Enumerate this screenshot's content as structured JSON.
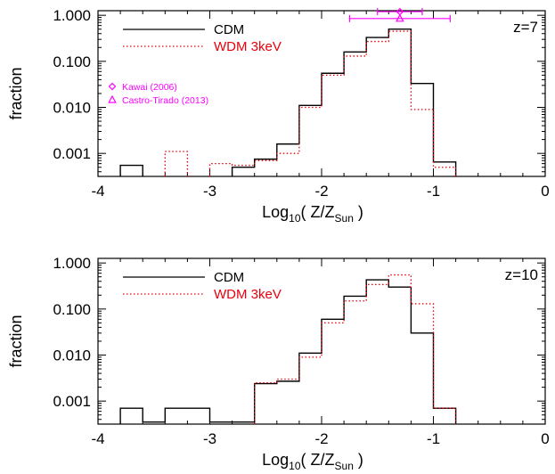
{
  "chart_data": [
    {
      "type": "step",
      "panel_label": "z=7",
      "xlabel_main": "Log",
      "xlabel_sub": "10",
      "xlabel_rest": "( Z/Z",
      "xlabel_sub2": "Sun",
      "xlabel_close": " )",
      "ylabel": "fraction",
      "xlim": [
        -4,
        0
      ],
      "ylim_log10": [
        -3.5,
        0.1
      ],
      "log_y": true,
      "x_ticks": [
        -4,
        -3,
        -2,
        -1,
        0
      ],
      "x_tick_labels": [
        "-4",
        "-3",
        "-2",
        "-1",
        "0"
      ],
      "y_ticks": [
        0.001,
        0.01,
        0.1,
        1.0
      ],
      "y_tick_labels": [
        "0.001",
        "0.010",
        "0.100",
        "1.000"
      ],
      "bin_width": 0.2,
      "legend": [
        {
          "label": "CDM",
          "color": "#000000",
          "style": "solid"
        },
        {
          "label": "WDM 3keV",
          "color": "#e8000b",
          "style": "dotted"
        }
      ],
      "series": [
        {
          "name": "CDM",
          "color": "#000000",
          "style": "solid",
          "bins": [
            [
              -3.8,
              0.00055
            ],
            [
              -2.8,
              0.0005
            ],
            [
              -2.6,
              0.00075
            ],
            [
              -2.4,
              0.0016
            ],
            [
              -2.2,
              0.011
            ],
            [
              -2.0,
              0.055
            ],
            [
              -1.8,
              0.16
            ],
            [
              -1.6,
              0.33
            ],
            [
              -1.4,
              0.5
            ],
            [
              -1.2,
              0.033
            ],
            [
              -1.0,
              0.00065
            ]
          ]
        },
        {
          "name": "WDM 3keV",
          "color": "#e8000b",
          "style": "dotted",
          "bins": [
            [
              -3.4,
              0.0011
            ],
            [
              -3.0,
              0.0006
            ],
            [
              -2.8,
              0.00055
            ],
            [
              -2.6,
              0.0007
            ],
            [
              -2.4,
              0.001
            ],
            [
              -2.2,
              0.01
            ],
            [
              -2.0,
              0.05
            ],
            [
              -1.8,
              0.13
            ],
            [
              -1.6,
              0.27
            ],
            [
              -1.4,
              0.45
            ],
            [
              -1.2,
              0.009
            ],
            [
              -1.0,
              0.0005
            ]
          ]
        }
      ],
      "annotations": [
        {
          "label": "Kawai (2006)",
          "marker": "diamond",
          "color": "#ff00ff",
          "x": -1.3,
          "y": 1.2,
          "xerr": 0.2
        },
        {
          "label": "Castro-Tirado (2013)",
          "marker": "triangle",
          "color": "#ff00ff",
          "x": -1.3,
          "y": 0.85,
          "xerr": 0.45
        }
      ]
    },
    {
      "type": "step",
      "panel_label": "z=10",
      "xlabel_main": "Log",
      "xlabel_sub": "10",
      "xlabel_rest": "( Z/Z",
      "xlabel_sub2": "Sun",
      "xlabel_close": " )",
      "ylabel": "fraction",
      "xlim": [
        -4,
        0
      ],
      "ylim_log10": [
        -3.5,
        0.1
      ],
      "log_y": true,
      "x_ticks": [
        -4,
        -3,
        -2,
        -1,
        0
      ],
      "x_tick_labels": [
        "-4",
        "-3",
        "-2",
        "-1",
        "0"
      ],
      "y_ticks": [
        0.001,
        0.01,
        0.1,
        1.0
      ],
      "y_tick_labels": [
        "0.001",
        "0.010",
        "0.100",
        "1.000"
      ],
      "bin_width": 0.2,
      "legend": [
        {
          "label": "CDM",
          "color": "#000000",
          "style": "solid"
        },
        {
          "label": "WDM 3keV",
          "color": "#e8000b",
          "style": "dotted"
        }
      ],
      "series": [
        {
          "name": "CDM",
          "color": "#000000",
          "style": "solid",
          "bins": [
            [
              -3.8,
              0.0007
            ],
            [
              -3.6,
              0.00035
            ],
            [
              -3.4,
              0.0007
            ],
            [
              -3.2,
              0.0007
            ],
            [
              -3.0,
              0.00035
            ],
            [
              -2.8,
              0.00035
            ],
            [
              -2.6,
              0.0024
            ],
            [
              -2.4,
              0.0027
            ],
            [
              -2.2,
              0.011
            ],
            [
              -2.0,
              0.06
            ],
            [
              -1.8,
              0.19
            ],
            [
              -1.6,
              0.43
            ],
            [
              -1.4,
              0.3
            ],
            [
              -1.2,
              0.03
            ],
            [
              -1.0,
              0.0007
            ]
          ]
        },
        {
          "name": "WDM 3keV",
          "color": "#e8000b",
          "style": "dotted",
          "bins": [
            [
              -2.6,
              0.0025
            ],
            [
              -2.4,
              0.003
            ],
            [
              -2.2,
              0.009
            ],
            [
              -2.0,
              0.05
            ],
            [
              -1.8,
              0.15
            ],
            [
              -1.6,
              0.34
            ],
            [
              -1.4,
              0.55
            ],
            [
              -1.2,
              0.13
            ],
            [
              -1.0,
              0.0007
            ]
          ]
        }
      ],
      "annotations": []
    }
  ]
}
